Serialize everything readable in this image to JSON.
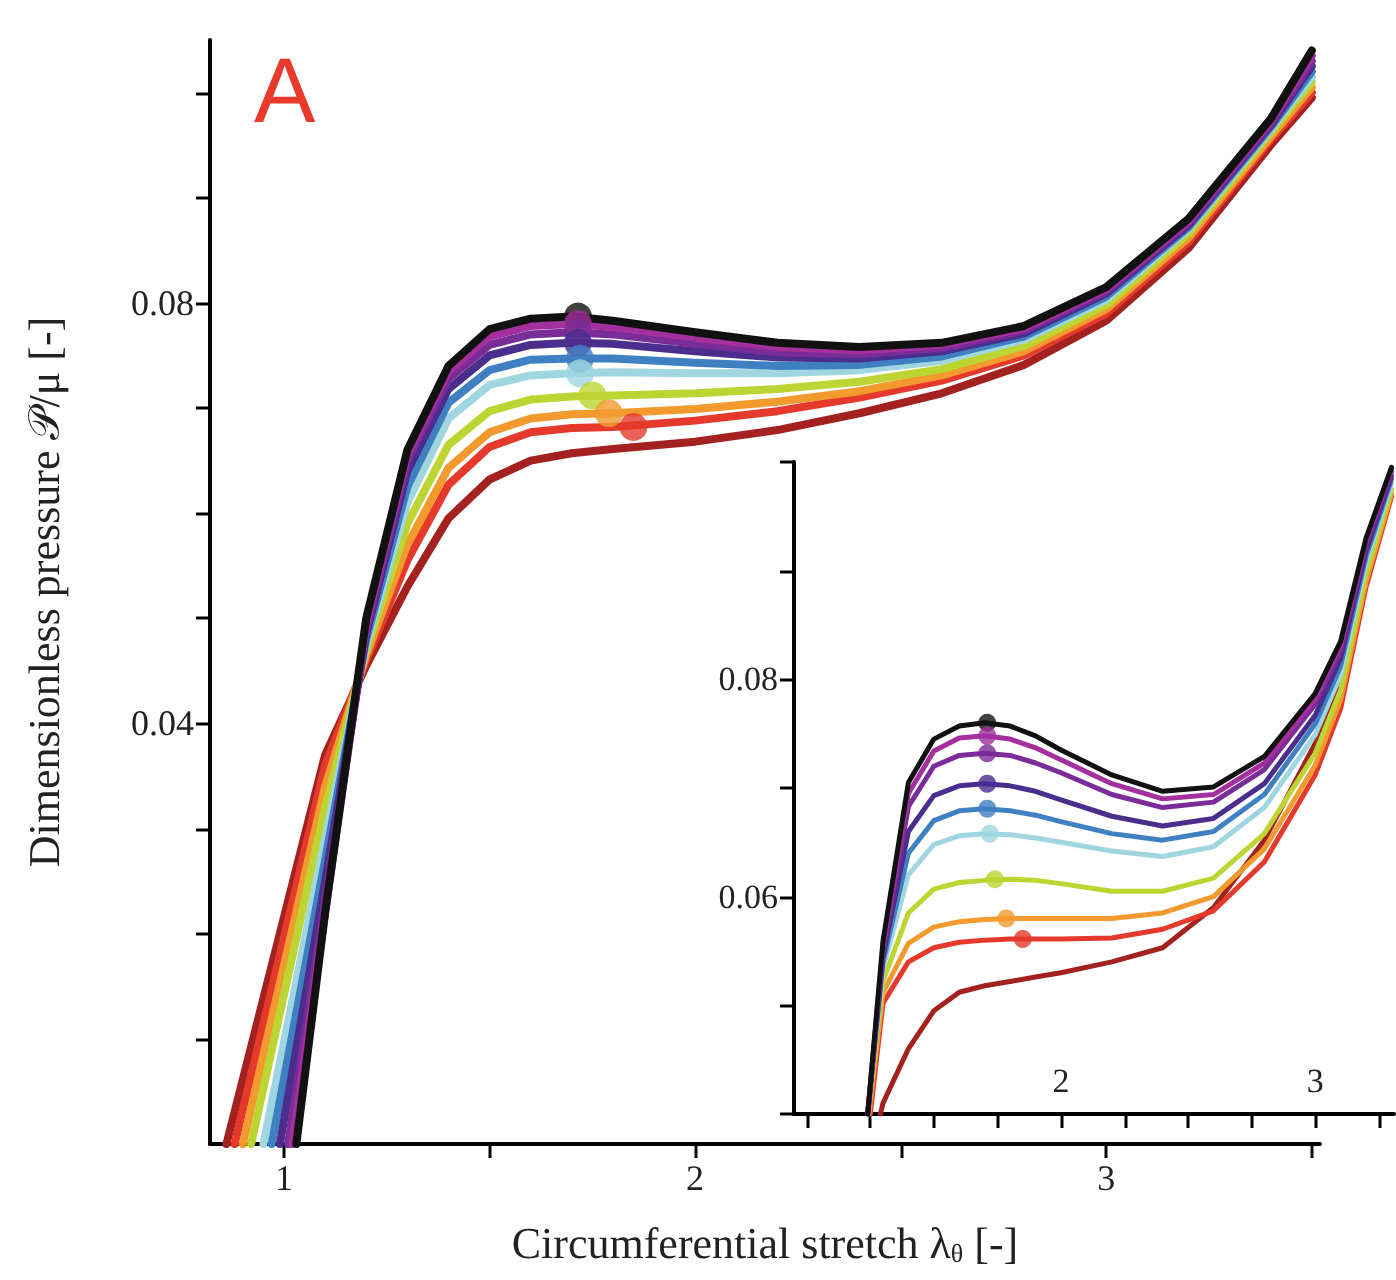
{
  "chart_data": [
    {
      "type": "line",
      "xlabel": "Circumferential stretch λ$_{θ}$ [-]",
      "ylabel": "Dimensionless pressure 𝒫/μ [-]",
      "annotations": [
        "A"
      ],
      "line_style": "solid",
      "xlim": [
        0.82,
        3.52
      ],
      "xticks": [
        1,
        {
          "value": 1.5,
          "label": null
        },
        2,
        {
          "value": 2.5,
          "label": null
        },
        3,
        {
          "value": 3.5,
          "label": null
        }
      ],
      "ylim": [
        0,
        0.105
      ],
      "yticks": [
        {
          "value": 0.01,
          "label": null
        },
        {
          "value": 0.02,
          "label": null
        },
        {
          "value": 0.03,
          "label": null
        },
        0.04,
        {
          "value": 0.05,
          "label": null
        },
        {
          "value": 0.06,
          "label": null
        },
        {
          "value": 0.07,
          "label": null
        },
        0.08,
        {
          "value": 0.09,
          "label": null
        },
        {
          "value": 0.1,
          "label": null
        }
      ],
      "series": [
        {
          "color": "#111111",
          "x": [
            1.03,
            1.1,
            1.2,
            1.3,
            1.4,
            1.5,
            1.6,
            1.7,
            1.8,
            2.0,
            2.2,
            2.4,
            2.6,
            2.8,
            3.0,
            3.2,
            3.4,
            3.5
          ],
          "values": [
            0,
            0.022,
            0.05,
            0.066,
            0.074,
            0.0775,
            0.0785,
            0.0787,
            0.0783,
            0.0772,
            0.0762,
            0.0758,
            0.0762,
            0.0778,
            0.0815,
            0.088,
            0.0975,
            0.104
          ]
        },
        {
          "color": "#a3309c",
          "x": [
            1.02,
            1.1,
            1.2,
            1.3,
            1.4,
            1.5,
            1.6,
            1.7,
            1.8,
            2.0,
            2.2,
            2.4,
            2.6,
            2.8,
            3.0,
            3.2,
            3.4,
            3.5
          ],
          "values": [
            0,
            0.022,
            0.0495,
            0.0655,
            0.0735,
            0.0768,
            0.0778,
            0.078,
            0.0777,
            0.0767,
            0.0758,
            0.0755,
            0.076,
            0.0776,
            0.0813,
            0.0878,
            0.0973,
            0.1035
          ]
        },
        {
          "color": "#7a2c99",
          "x": [
            1.01,
            1.1,
            1.2,
            1.3,
            1.4,
            1.5,
            1.6,
            1.7,
            1.8,
            2.0,
            2.2,
            2.4,
            2.6,
            2.8,
            3.0,
            3.2,
            3.4,
            3.5
          ],
          "values": [
            0,
            0.023,
            0.049,
            0.065,
            0.0728,
            0.076,
            0.077,
            0.0772,
            0.077,
            0.0761,
            0.0753,
            0.0751,
            0.0757,
            0.0774,
            0.0811,
            0.0876,
            0.0971,
            0.103
          ]
        },
        {
          "color": "#4a2d8c",
          "x": [
            0.99,
            1.1,
            1.2,
            1.3,
            1.4,
            1.5,
            1.6,
            1.7,
            1.8,
            2.0,
            2.2,
            2.4,
            2.6,
            2.8,
            3.0,
            3.2,
            3.4,
            3.5
          ],
          "values": [
            0,
            0.025,
            0.0485,
            0.064,
            0.0718,
            0.075,
            0.076,
            0.0762,
            0.0761,
            0.0754,
            0.0748,
            0.0747,
            0.0754,
            0.0771,
            0.0809,
            0.0874,
            0.0969,
            0.1025
          ]
        },
        {
          "color": "#3f80c2",
          "x": [
            0.97,
            1.1,
            1.2,
            1.3,
            1.4,
            1.5,
            1.6,
            1.7,
            1.8,
            2.0,
            2.2,
            2.4,
            2.6,
            2.8,
            3.0,
            3.2,
            3.4,
            3.5
          ],
          "values": [
            0,
            0.027,
            0.048,
            0.0625,
            0.0705,
            0.0736,
            0.0746,
            0.0747,
            0.0747,
            0.0743,
            0.074,
            0.0741,
            0.0749,
            0.0768,
            0.0806,
            0.0872,
            0.0967,
            0.102
          ]
        },
        {
          "color": "#9fd6df",
          "x": [
            0.95,
            1.1,
            1.2,
            1.3,
            1.4,
            1.5,
            1.6,
            1.7,
            1.8,
            2.0,
            2.2,
            2.4,
            2.6,
            2.8,
            3.0,
            3.2,
            3.4,
            3.5
          ],
          "values": [
            0,
            0.029,
            0.0475,
            0.061,
            0.069,
            0.0722,
            0.0731,
            0.0733,
            0.0734,
            0.0733,
            0.0733,
            0.0736,
            0.0745,
            0.0765,
            0.0803,
            0.087,
            0.0965,
            0.1015
          ]
        },
        {
          "color": "#bdd532",
          "x": [
            0.92,
            1.1,
            1.2,
            1.3,
            1.4,
            1.5,
            1.6,
            1.7,
            1.8,
            2.0,
            2.2,
            2.4,
            2.6,
            2.8,
            3.0,
            3.2,
            3.4,
            3.5
          ],
          "values": [
            0,
            0.032,
            0.047,
            0.059,
            0.0665,
            0.0697,
            0.0708,
            0.0711,
            0.0712,
            0.0714,
            0.0718,
            0.0725,
            0.0737,
            0.0759,
            0.0798,
            0.0866,
            0.0962,
            0.101
          ]
        },
        {
          "color": "#f29a2e",
          "x": [
            0.9,
            1.1,
            1.2,
            1.3,
            1.4,
            1.5,
            1.6,
            1.7,
            1.8,
            2.0,
            2.2,
            2.4,
            2.6,
            2.8,
            3.0,
            3.2,
            3.4,
            3.5
          ],
          "values": [
            0,
            0.034,
            0.0465,
            0.057,
            0.0643,
            0.0677,
            0.069,
            0.0694,
            0.0695,
            0.0699,
            0.0706,
            0.0716,
            0.0731,
            0.0754,
            0.0794,
            0.0862,
            0.0958,
            0.1005
          ]
        },
        {
          "color": "#e5392b",
          "x": [
            0.88,
            1.1,
            1.2,
            1.3,
            1.4,
            1.5,
            1.6,
            1.7,
            1.8,
            2.0,
            2.2,
            2.4,
            2.6,
            2.8,
            3.0,
            3.2,
            3.4,
            3.5
          ],
          "values": [
            0,
            0.036,
            0.046,
            0.0555,
            0.0627,
            0.0663,
            0.0677,
            0.0681,
            0.0682,
            0.0688,
            0.0697,
            0.071,
            0.0726,
            0.075,
            0.079,
            0.0858,
            0.0955,
            0.1
          ]
        },
        {
          "color": "#a3221f",
          "x": [
            0.86,
            1.1,
            1.2,
            1.3,
            1.4,
            1.5,
            1.6,
            1.7,
            1.8,
            2.0,
            2.2,
            2.4,
            2.6,
            2.8,
            3.0,
            3.2,
            3.4,
            3.5
          ],
          "values": [
            0,
            0.037,
            0.0455,
            0.053,
            0.0595,
            0.0632,
            0.065,
            0.0657,
            0.0661,
            0.0668,
            0.0679,
            0.0695,
            0.0714,
            0.0741,
            0.0783,
            0.0852,
            0.095,
            0.0995
          ]
        },
        {
          "type": "scatter",
          "marker": "circle",
          "colors": [
            "#111111",
            "#a3309c",
            "#7a2c99",
            "#4a2d8c",
            "#3f80c2",
            "#9fd6df",
            "#bdd532",
            "#f29a2e",
            "#e5392b"
          ],
          "x": [
            1.715,
            1.715,
            1.715,
            1.715,
            1.72,
            1.72,
            1.75,
            1.79,
            1.85
          ],
          "values": [
            0.0787,
            0.078,
            0.0772,
            0.0762,
            0.0747,
            0.0733,
            0.0712,
            0.0695,
            0.0682
          ]
        }
      ]
    },
    {
      "type": "line",
      "line_style": "solid",
      "xlim": [
        0.95,
        3.31
      ],
      "xticks": [
        {
          "value": 1,
          "label": null
        },
        {
          "value": 1.25,
          "label": null
        },
        {
          "value": 1.5,
          "label": null
        },
        {
          "value": 1.75,
          "label": null
        },
        2,
        {
          "value": 2.25,
          "label": null
        },
        {
          "value": 2.5,
          "label": null
        },
        {
          "value": 2.75,
          "label": null
        },
        3,
        {
          "value": 3.25,
          "label": null
        }
      ],
      "ylim": [
        0.04,
        0.1
      ],
      "yticks": [
        {
          "value": 0.04,
          "label": null
        },
        {
          "value": 0.05,
          "label": null
        },
        0.06,
        {
          "value": 0.07,
          "label": null
        },
        0.08,
        {
          "value": 0.09,
          "label": null
        },
        {
          "value": 0.1,
          "label": null
        }
      ],
      "series": [
        {
          "color": "#111111",
          "x": [
            1.24,
            1.3,
            1.4,
            1.5,
            1.6,
            1.7,
            1.8,
            1.9,
            2.0,
            2.2,
            2.4,
            2.6,
            2.8,
            3.0,
            3.1,
            3.2,
            3.3
          ],
          "values": [
            0.04,
            0.0559,
            0.0705,
            0.0745,
            0.0757,
            0.076,
            0.0757,
            0.0748,
            0.0735,
            0.0712,
            0.0697,
            0.0701,
            0.0729,
            0.0787,
            0.0835,
            0.093,
            0.0995
          ]
        },
        {
          "color": "#a3309c",
          "x": [
            1.24,
            1.3,
            1.4,
            1.5,
            1.6,
            1.7,
            1.8,
            1.9,
            2.0,
            2.2,
            2.4,
            2.6,
            2.8,
            3.0,
            3.1,
            3.2,
            3.3
          ],
          "values": [
            0.04,
            0.0555,
            0.0695,
            0.0734,
            0.0746,
            0.0748,
            0.0745,
            0.0737,
            0.0726,
            0.0704,
            0.069,
            0.0694,
            0.0723,
            0.0782,
            0.0831,
            0.0927,
            0.0993
          ]
        },
        {
          "color": "#7a2c99",
          "x": [
            1.24,
            1.3,
            1.4,
            1.5,
            1.6,
            1.7,
            1.8,
            1.9,
            2.0,
            2.2,
            2.4,
            2.6,
            2.8,
            3.0,
            3.1,
            3.2,
            3.3
          ],
          "values": [
            0.04,
            0.0551,
            0.0683,
            0.072,
            0.073,
            0.0732,
            0.073,
            0.0723,
            0.0714,
            0.0694,
            0.0682,
            0.0687,
            0.0717,
            0.0777,
            0.0827,
            0.0924,
            0.0991
          ]
        },
        {
          "color": "#4a2d8c",
          "x": [
            1.24,
            1.3,
            1.4,
            1.5,
            1.6,
            1.7,
            1.8,
            1.9,
            2.0,
            2.2,
            2.4,
            2.6,
            2.8,
            3.0,
            3.1,
            3.2,
            3.3
          ],
          "values": [
            0.04,
            0.0545,
            0.066,
            0.0693,
            0.0702,
            0.0704,
            0.0702,
            0.0697,
            0.0689,
            0.0674,
            0.0665,
            0.0672,
            0.0704,
            0.0767,
            0.0819,
            0.0918,
            0.0987
          ]
        },
        {
          "color": "#3f80c2",
          "x": [
            1.24,
            1.3,
            1.4,
            1.5,
            1.6,
            1.7,
            1.8,
            1.9,
            2.0,
            2.2,
            2.4,
            2.6,
            2.8,
            3.0,
            3.1,
            3.2,
            3.3
          ],
          "values": [
            0.04,
            0.054,
            0.064,
            0.067,
            0.0679,
            0.0681,
            0.0679,
            0.0675,
            0.0669,
            0.0658,
            0.0652,
            0.066,
            0.0694,
            0.0759,
            0.0812,
            0.0913,
            0.0984
          ]
        },
        {
          "color": "#9fd6df",
          "x": [
            1.24,
            1.3,
            1.4,
            1.5,
            1.6,
            1.7,
            1.8,
            1.9,
            2.0,
            2.2,
            2.4,
            2.6,
            2.8,
            3.0,
            3.1,
            3.2,
            3.3
          ],
          "values": [
            0.04,
            0.0534,
            0.062,
            0.0648,
            0.0656,
            0.0658,
            0.0657,
            0.0654,
            0.065,
            0.0642,
            0.0637,
            0.0646,
            0.0682,
            0.0749,
            0.0804,
            0.0907,
            0.098
          ]
        },
        {
          "color": "#bdd532",
          "x": [
            1.24,
            1.3,
            1.4,
            1.5,
            1.6,
            1.7,
            1.8,
            1.9,
            2.0,
            2.2,
            2.4,
            2.6,
            2.8,
            3.0,
            3.1,
            3.2,
            3.3
          ],
          "values": [
            0.04,
            0.0522,
            0.0585,
            0.0607,
            0.0613,
            0.0615,
            0.0616,
            0.0615,
            0.0612,
            0.0605,
            0.0605,
            0.0617,
            0.0658,
            0.0732,
            0.079,
            0.0897,
            0.0975
          ]
        },
        {
          "color": "#f29a2e",
          "x": [
            1.245,
            1.3,
            1.4,
            1.5,
            1.6,
            1.7,
            1.8,
            1.9,
            2.0,
            2.2,
            2.4,
            2.6,
            2.8,
            3.0,
            3.1,
            3.2,
            3.3
          ],
          "values": [
            0.04,
            0.0512,
            0.0557,
            0.0572,
            0.0577,
            0.0579,
            0.058,
            0.058,
            0.058,
            0.058,
            0.0585,
            0.06,
            0.0644,
            0.0721,
            0.0781,
            0.089,
            0.0971
          ]
        },
        {
          "color": "#e5392b",
          "x": [
            1.25,
            1.3,
            1.4,
            1.5,
            1.6,
            1.7,
            1.8,
            1.9,
            2.0,
            2.2,
            2.4,
            2.6,
            2.8,
            3.0,
            3.1,
            3.2,
            3.3
          ],
          "values": [
            0.04,
            0.0502,
            0.054,
            0.0553,
            0.0558,
            0.056,
            0.0561,
            0.0561,
            0.0561,
            0.0562,
            0.057,
            0.0587,
            0.0632,
            0.0712,
            0.0773,
            0.0885,
            0.0968
          ]
        },
        {
          "color": "#a3221f",
          "x": [
            1.29,
            1.3,
            1.4,
            1.5,
            1.6,
            1.7,
            1.8,
            1.9,
            2.0,
            2.2,
            2.4,
            2.6,
            2.8,
            3.0,
            3.1,
            3.2,
            3.3
          ],
          "values": [
            0.04,
            0.041,
            0.046,
            0.0495,
            0.0512,
            0.0518,
            0.0522,
            0.0526,
            0.053,
            0.054,
            0.0553,
            0.059,
            0.0652,
            0.0741,
            0.08,
            0.0891,
            0.097
          ]
        },
        {
          "type": "scatter",
          "marker": "circle",
          "colors": [
            "#111111",
            "#a3309c",
            "#7a2c99",
            "#4a2d8c",
            "#3f80c2",
            "#9fd6df",
            "#bdd532",
            "#f29a2e",
            "#e5392b"
          ],
          "x": [
            1.71,
            1.71,
            1.71,
            1.71,
            1.71,
            1.72,
            1.74,
            1.785,
            1.85
          ],
          "values": [
            0.076,
            0.0748,
            0.0732,
            0.0704,
            0.0681,
            0.0658,
            0.0616,
            0.058,
            0.0561
          ]
        }
      ]
    }
  ]
}
